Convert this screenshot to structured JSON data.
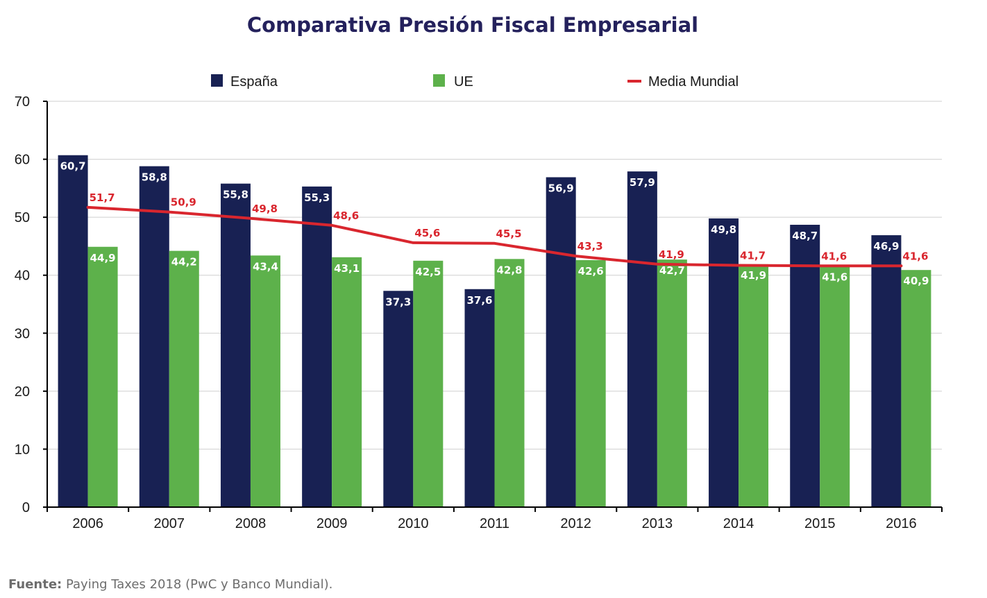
{
  "chart_data": {
    "type": "bar",
    "title": "Comparativa Presión Fiscal Empresarial",
    "categories": [
      "2006",
      "2007",
      "2008",
      "2009",
      "2010",
      "2011",
      "2012",
      "2013",
      "2014",
      "2015",
      "2016"
    ],
    "series": [
      {
        "name": "España",
        "kind": "bar",
        "color": "#182153",
        "values": [
          60.7,
          58.8,
          55.8,
          55.3,
          37.3,
          37.6,
          56.9,
          57.9,
          49.8,
          48.7,
          46.9
        ],
        "labels": [
          "60,7",
          "58,8",
          "55,8",
          "55,3",
          "37,3",
          "37,6",
          "56,9",
          "57,9",
          "49,8",
          "48,7",
          "46,9"
        ]
      },
      {
        "name": "UE",
        "kind": "bar",
        "color": "#5db14b",
        "values": [
          44.9,
          44.2,
          43.4,
          43.1,
          42.5,
          42.8,
          42.6,
          42.7,
          41.9,
          41.6,
          40.9
        ],
        "labels": [
          "44,9",
          "44,2",
          "43,4",
          "43,1",
          "42,5",
          "42,8",
          "42,6",
          "42,7",
          "41,9",
          "41,6",
          "40,9"
        ]
      },
      {
        "name": "Media Mundial",
        "kind": "line",
        "color": "#d9262e",
        "values": [
          51.7,
          50.9,
          49.8,
          48.6,
          45.6,
          45.5,
          43.3,
          41.9,
          41.7,
          41.6,
          41.6
        ],
        "labels": [
          "51,7",
          "50,9",
          "49,8",
          "48,6",
          "45,6",
          "45,5",
          "43,3",
          "41,9",
          "41,7",
          "41,6",
          "41,6"
        ]
      }
    ],
    "yticks": [
      "0",
      "10",
      "20",
      "30",
      "40",
      "50",
      "60",
      "70"
    ],
    "ylim": [
      0,
      70
    ],
    "xlabel": "",
    "ylabel": "",
    "grid": true,
    "legend_position": "top"
  },
  "source": {
    "label": "Fuente:",
    "text": " Paying Taxes 2018 (PwC y Banco Mundial)."
  }
}
